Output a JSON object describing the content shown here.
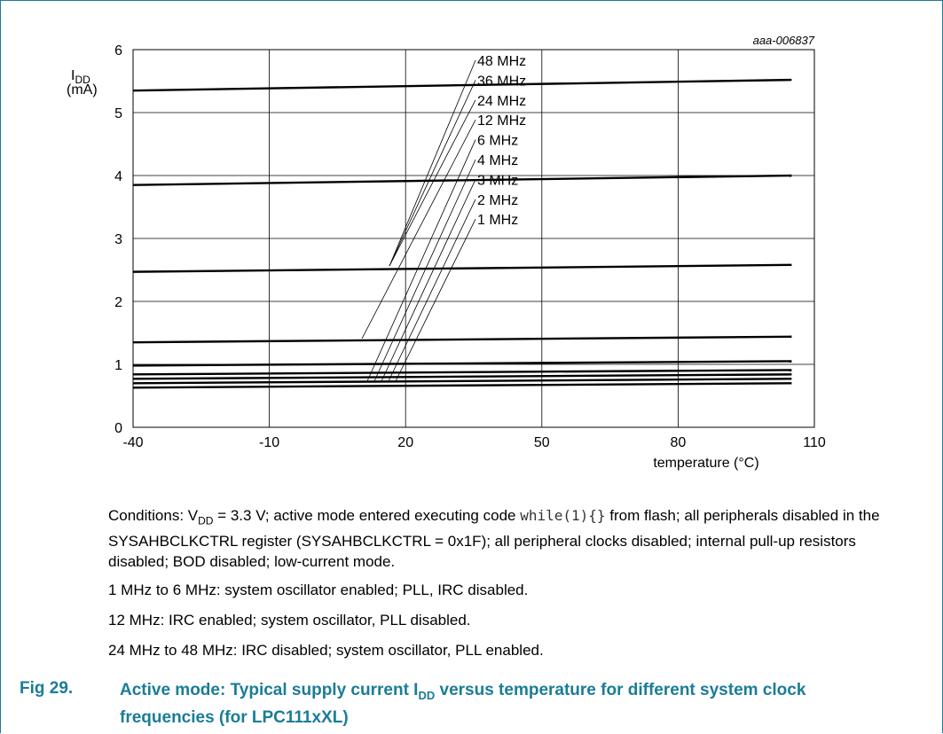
{
  "figure": {
    "number": "Fig 29.",
    "title_part1": "Active mode: Typical supply current I",
    "title_sub": "DD",
    "title_part2": " versus temperature for different system clock frequencies (for LPC111xXL)"
  },
  "notes": {
    "conditions_prefix": "Conditions: V",
    "conditions_sub": "DD",
    "conditions_mid": " = 3.3 V; active mode entered executing code ",
    "conditions_code": "while(1){}",
    "conditions_rest": " from flash; all peripherals disabled in the SYSAHBCLKCTRL register (SYSAHBCLKCTRL = 0x1F); all peripheral clocks disabled; internal pull-up resistors disabled; BOD disabled; low-current mode.",
    "note1": "1 MHz to 6 MHz: system oscillator enabled; PLL, IRC disabled.",
    "note2": "12 MHz: IRC enabled; system oscillator, PLL disabled.",
    "note3": "24 MHz to 48 MHz: IRC disabled; system oscillator, PLL enabled."
  },
  "chart_data": {
    "type": "line",
    "chart_id": "aaa-006837",
    "ylabel_main": "I",
    "ylabel_sub": "DD",
    "ylabel_unit": "(mA)",
    "xlabel": "temperature (°C)",
    "xlim": [
      -40,
      110
    ],
    "ylim": [
      0,
      6
    ],
    "xticks": [
      -40,
      -10,
      20,
      50,
      80,
      110
    ],
    "yticks": [
      0,
      1,
      2,
      3,
      4,
      5,
      6
    ],
    "grid": true,
    "x": [
      -40,
      105
    ],
    "series": [
      {
        "name": "48 MHz",
        "values": [
          5.35,
          5.52
        ]
      },
      {
        "name": "36 MHz",
        "values": [
          3.85,
          4.0
        ]
      },
      {
        "name": "24 MHz",
        "values": [
          2.47,
          2.58
        ]
      },
      {
        "name": "12 MHz",
        "values": [
          1.35,
          1.44
        ]
      },
      {
        "name": "6 MHz",
        "values": [
          0.98,
          1.05
        ]
      },
      {
        "name": "4 MHz",
        "values": [
          0.84,
          0.91
        ]
      },
      {
        "name": "3 MHz",
        "values": [
          0.77,
          0.84
        ]
      },
      {
        "name": "2 MHz",
        "values": [
          0.7,
          0.77
        ]
      },
      {
        "name": "1 MHz",
        "values": [
          0.63,
          0.7
        ]
      }
    ]
  }
}
